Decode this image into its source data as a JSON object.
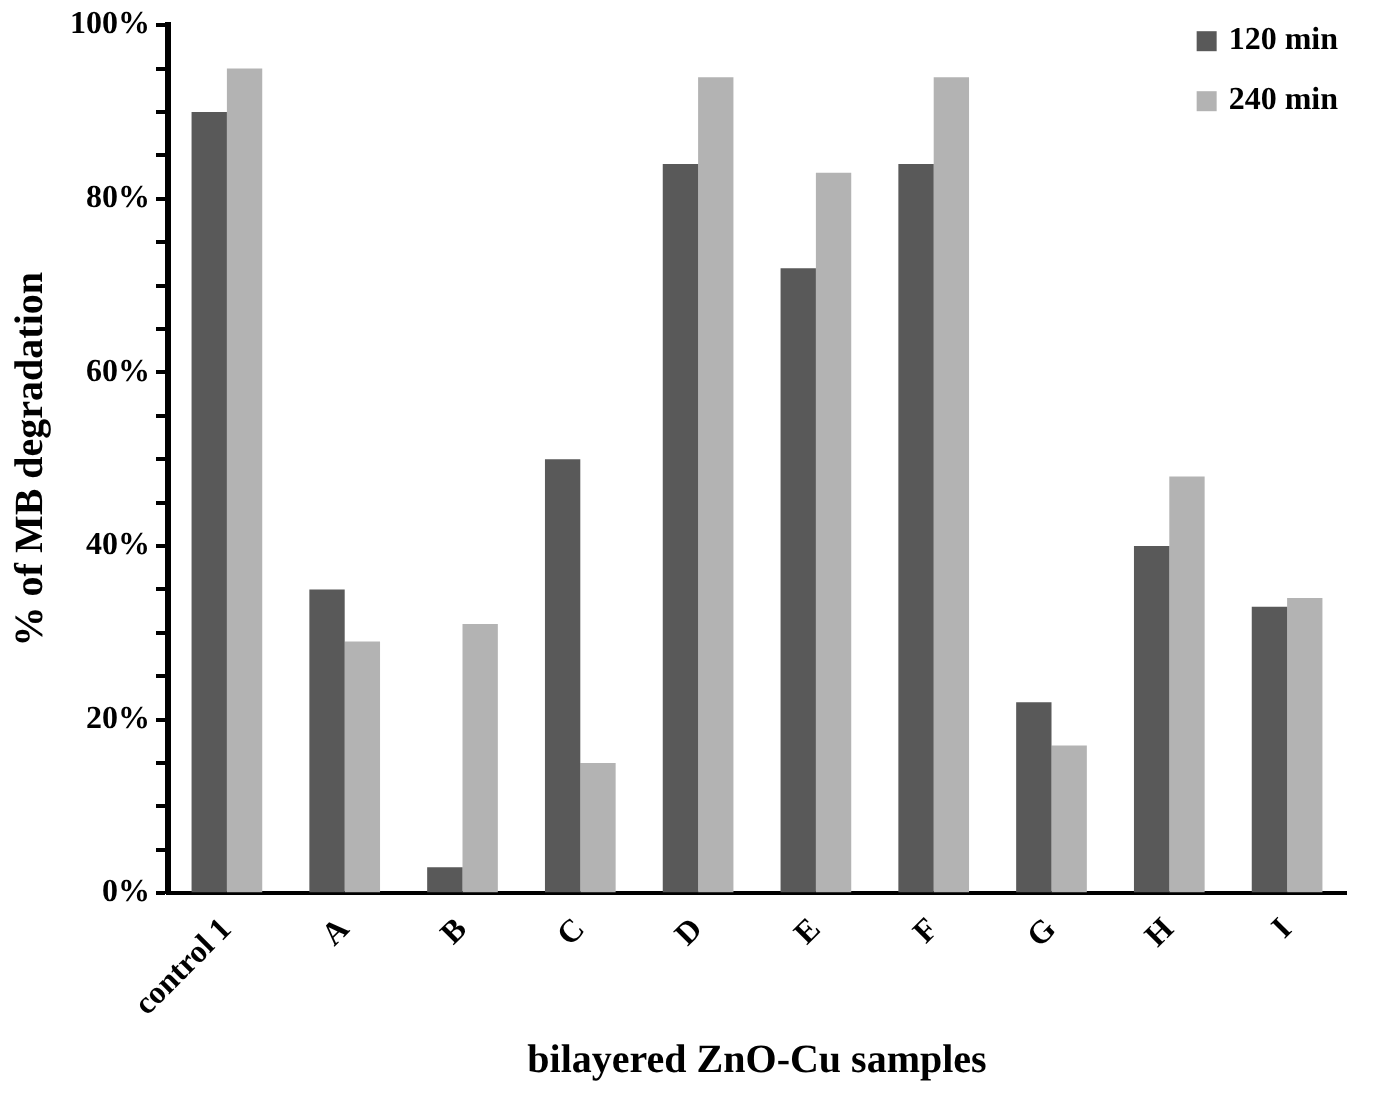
{
  "chart_data": {
    "type": "bar",
    "xlabel": "bilayered ZnO-Cu samples",
    "ylabel": "% of MB degradation",
    "categories": [
      "control 1",
      "A",
      "B",
      "C",
      "D",
      "E",
      "F",
      "G",
      "H",
      "I"
    ],
    "series": [
      {
        "name": "120 min",
        "color": "#595959",
        "values": [
          90,
          35,
          3,
          50,
          84,
          72,
          84,
          22,
          40,
          33
        ]
      },
      {
        "name": "240 min",
        "color": "#b3b3b3",
        "values": [
          95,
          29,
          31,
          15,
          94,
          83,
          94,
          17,
          48,
          34
        ]
      }
    ],
    "ylim": [
      0,
      100
    ],
    "yticks": [
      {
        "value": 0,
        "label": "0%"
      },
      {
        "value": 5,
        "label": null
      },
      {
        "value": 10,
        "label": null
      },
      {
        "value": 15,
        "label": null
      },
      {
        "value": 20,
        "label": "20%"
      },
      {
        "value": 25,
        "label": null
      },
      {
        "value": 30,
        "label": null
      },
      {
        "value": 35,
        "label": null
      },
      {
        "value": 40,
        "label": "40%"
      },
      {
        "value": 45,
        "label": null
      },
      {
        "value": 50,
        "label": null
      },
      {
        "value": 55,
        "label": null
      },
      {
        "value": 60,
        "label": "60%"
      },
      {
        "value": 65,
        "label": null
      },
      {
        "value": 70,
        "label": null
      },
      {
        "value": 75,
        "label": null
      },
      {
        "value": 80,
        "label": "80%"
      },
      {
        "value": 85,
        "label": null
      },
      {
        "value": 90,
        "label": null
      },
      {
        "value": 95,
        "label": null
      },
      {
        "value": 100,
        "label": "100%"
      }
    ],
    "grid": false,
    "legend": "top right"
  }
}
